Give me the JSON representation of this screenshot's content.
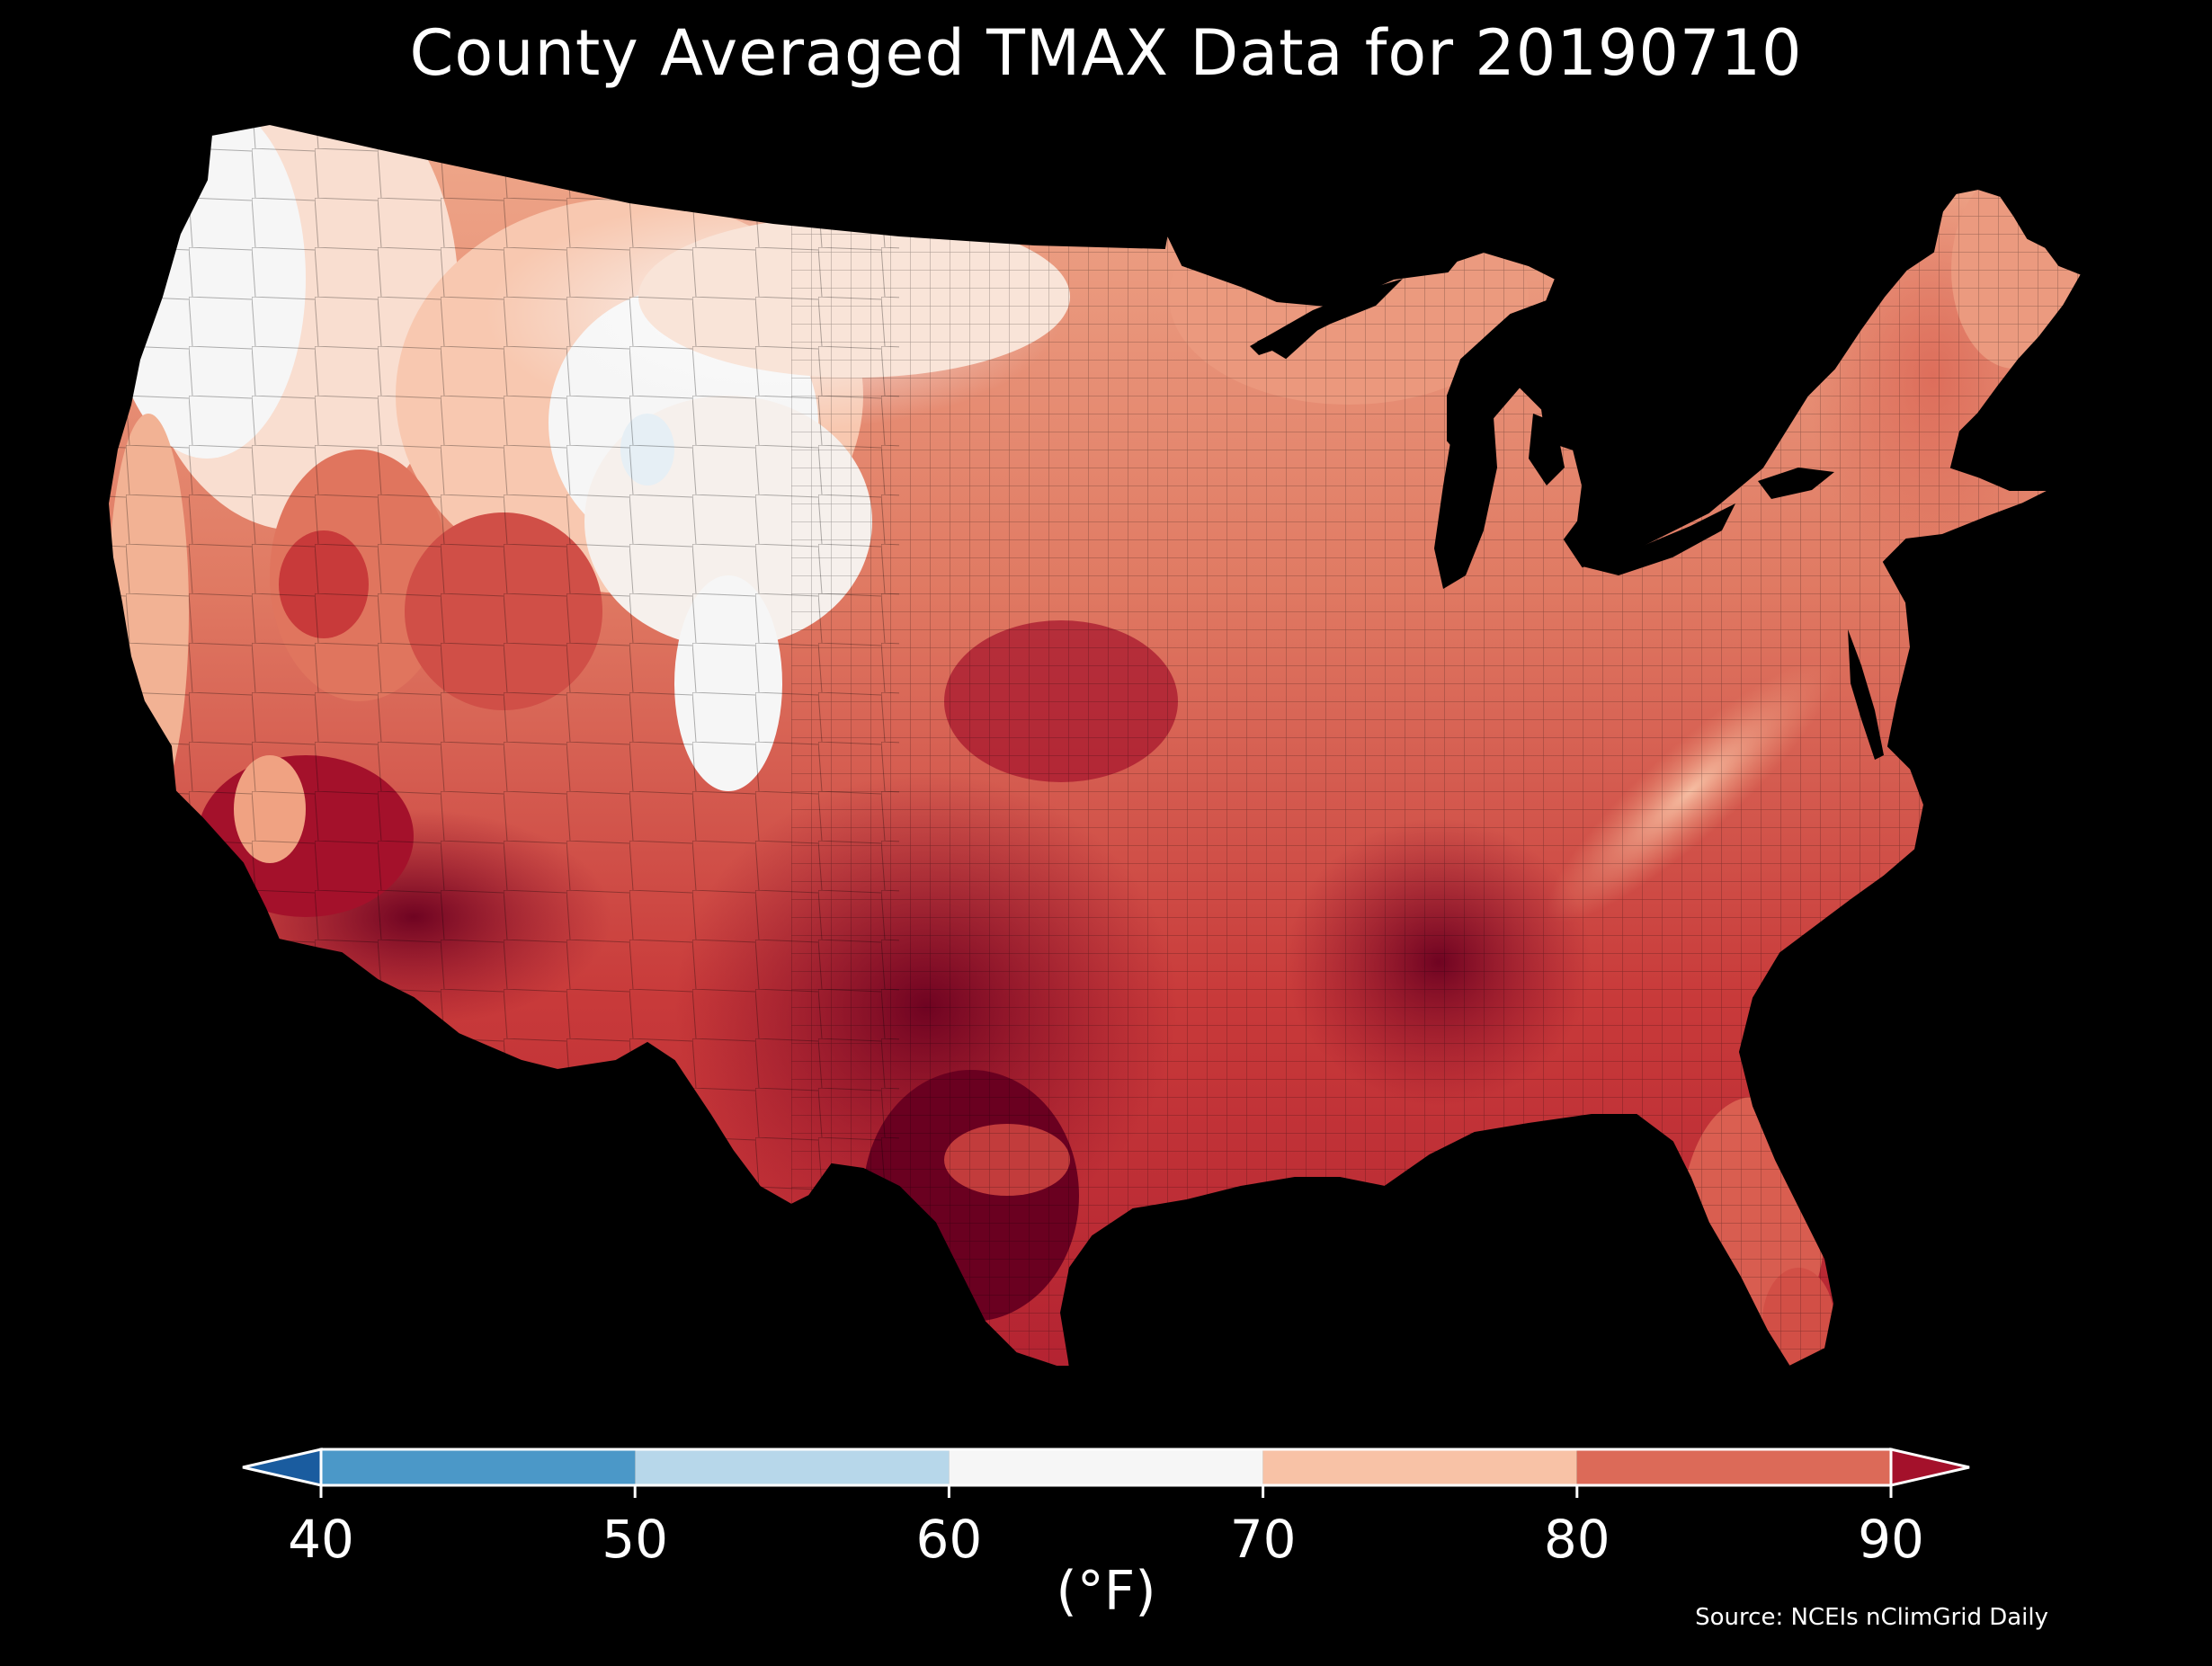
{
  "title": "County Averaged TMAX Data for 20190710",
  "source": "Source: NCEIs nClimGrid Daily",
  "colorbar": {
    "unit": "(°F)",
    "ticks": [
      "40",
      "50",
      "60",
      "70",
      "80",
      "90"
    ],
    "bins": [
      {
        "from": 40,
        "to": 50,
        "color": "#4b98c8"
      },
      {
        "from": 50,
        "to": 60,
        "color": "#b7d7ea"
      },
      {
        "from": 60,
        "to": 70,
        "color": "#f6f6f6"
      },
      {
        "from": 70,
        "to": 80,
        "color": "#f8c2a6"
      },
      {
        "from": 80,
        "to": 90,
        "color": "#dc6a58"
      }
    ],
    "under_color": "#1a5c9f",
    "over_color": "#a4112b",
    "extend": "both"
  },
  "palette": {
    "cool_white": "#f6f6f6",
    "pale_blue": "#e6eff5",
    "light_salmon": "#f8c2a6",
    "salmon": "#ec9677",
    "red_orange": "#dc6a58",
    "red": "#c83a3a",
    "dark_red": "#a4112b",
    "darkest_red": "#6a0020"
  }
}
